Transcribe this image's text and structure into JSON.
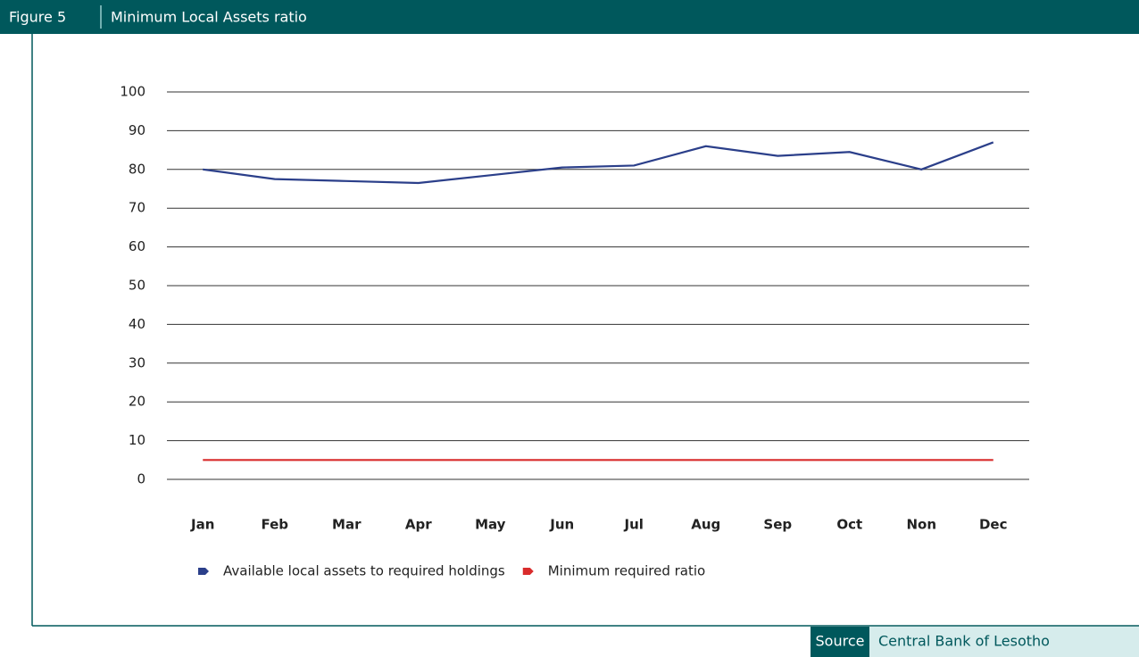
{
  "chart_data": {
    "type": "line",
    "figure_label": "Figure 5",
    "title": "Minimum Local Assets ratio",
    "categories": [
      "Jan",
      "Feb",
      "Mar",
      "Apr",
      "May",
      "Jun",
      "Jul",
      "Aug",
      "Sep",
      "Oct",
      "Non",
      "Dec"
    ],
    "series": [
      {
        "name": "Available local assets to required holdings",
        "color": "#2b3f8a",
        "values": [
          80,
          77.5,
          77,
          76.5,
          78.5,
          80.5,
          81,
          86,
          83.5,
          84.5,
          80,
          87
        ]
      },
      {
        "name": "Minimum required ratio",
        "color": "#d92b2b",
        "values": [
          5,
          5,
          5,
          5,
          5,
          5,
          5,
          5,
          5,
          5,
          5,
          5
        ]
      }
    ],
    "ylim": [
      0,
      100
    ],
    "yticks": [
      0,
      10,
      20,
      30,
      40,
      50,
      60,
      70,
      80,
      90,
      100
    ],
    "grid": true,
    "legend": "bottom",
    "source_label": "Source",
    "source": "Central Bank of Lesotho"
  }
}
